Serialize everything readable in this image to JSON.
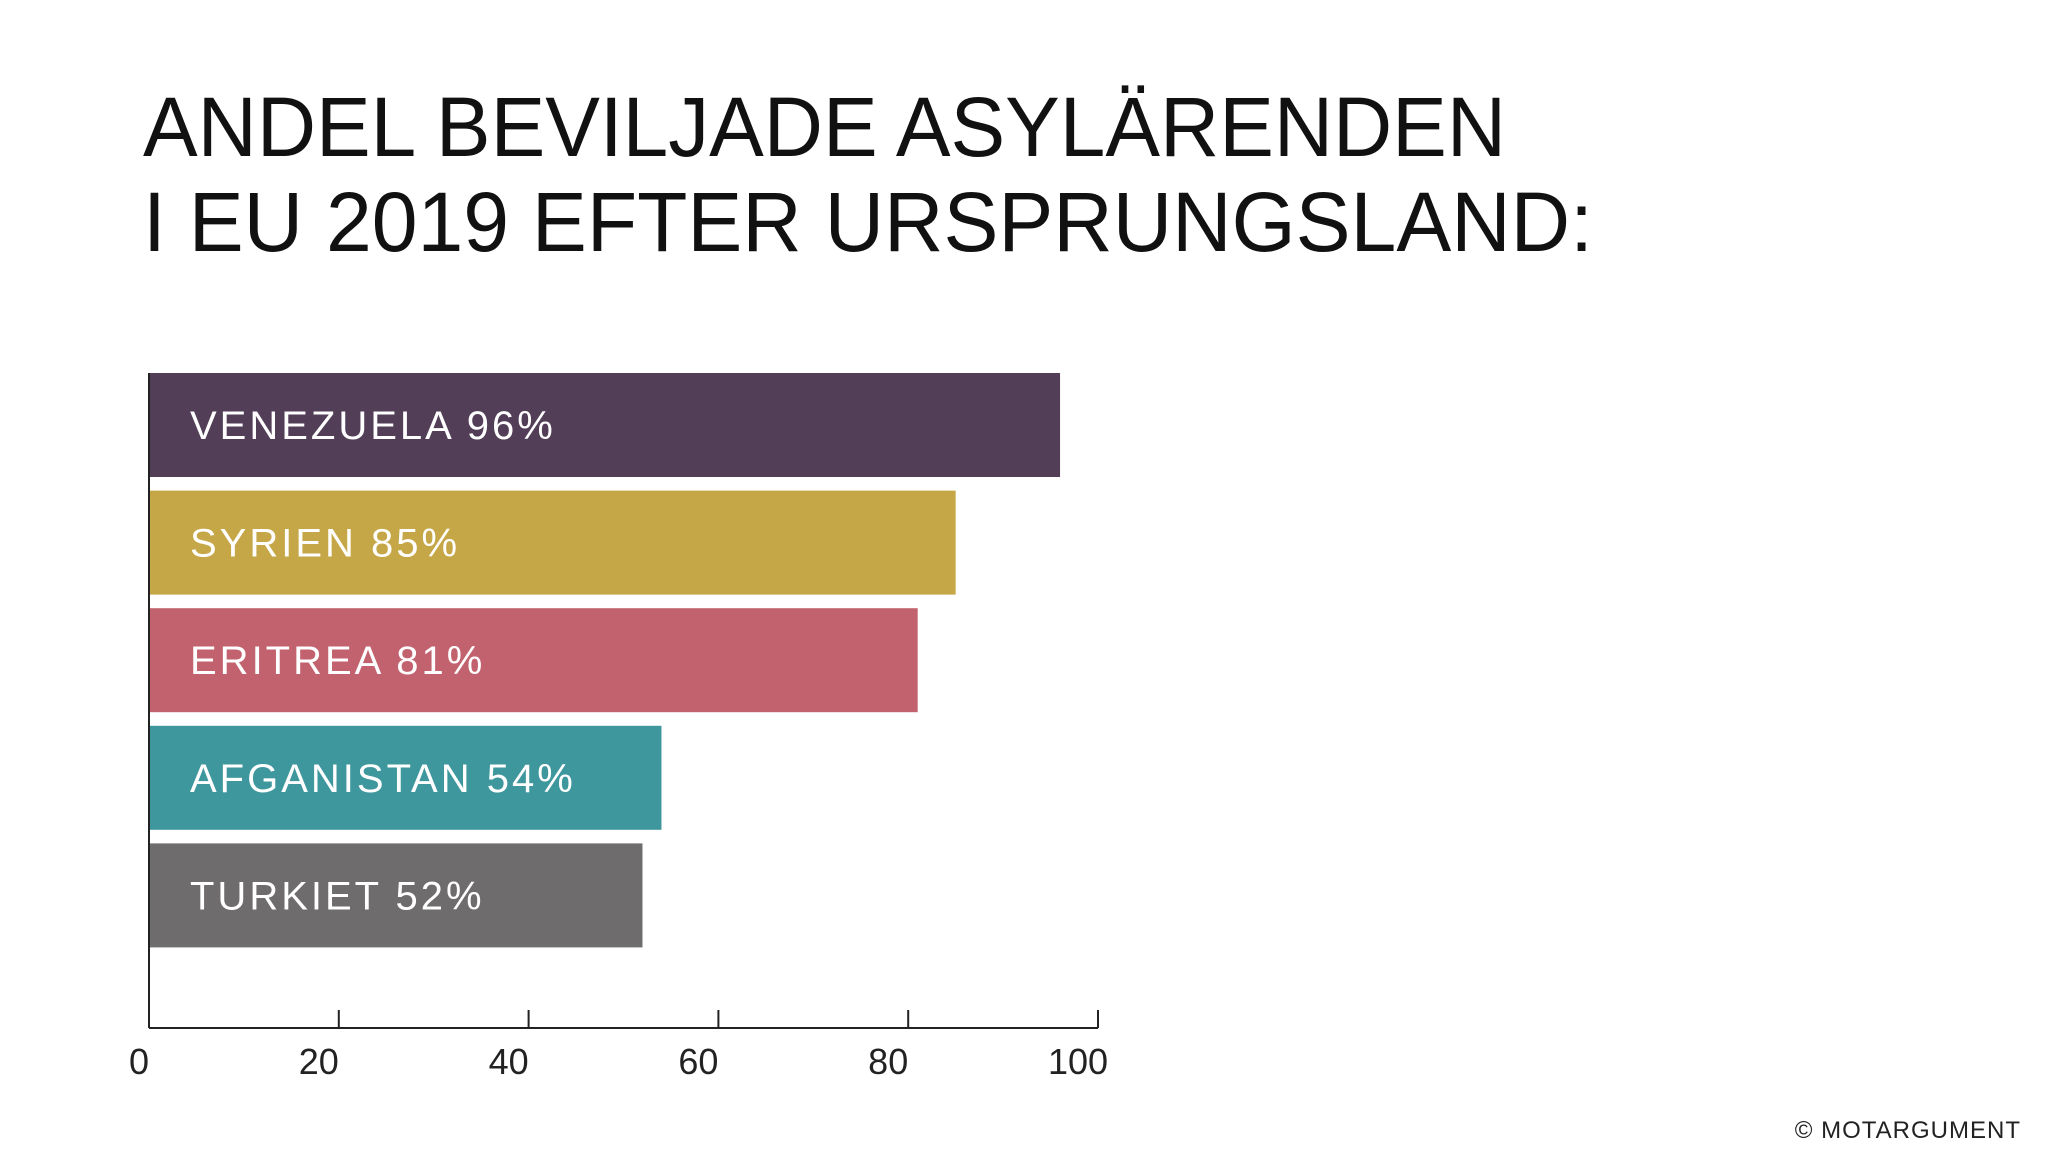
{
  "chart_data": {
    "type": "bar",
    "orientation": "horizontal",
    "title_lines": [
      "ANDEL BEVILJADE ASYLÄRENDEN",
      "I EU 2019 EFTER URSPRUNGSLAND:"
    ],
    "categories": [
      "VENEZUELA",
      "SYRIEN",
      "ERITREA",
      "AFGANISTAN",
      "TURKIET"
    ],
    "values": [
      96,
      85,
      81,
      54,
      52
    ],
    "bar_labels": [
      "VENEZUELA 96%",
      "SYRIEN 85%",
      "ERITREA 81%",
      "AFGANISTAN 54%",
      "TURKIET 52%"
    ],
    "colors": [
      "#523e57",
      "#c6a748",
      "#c2626e",
      "#3f979e",
      "#6e6c6d"
    ],
    "xlim": [
      0,
      100
    ],
    "xticks": [
      0,
      20,
      40,
      60,
      80,
      100
    ],
    "xtick_labels": [
      "0",
      "20",
      "40",
      "60",
      "80",
      "100"
    ],
    "xlabel": "",
    "ylabel": "",
    "grid": false
  },
  "footer": "© MOTARGUMENT"
}
